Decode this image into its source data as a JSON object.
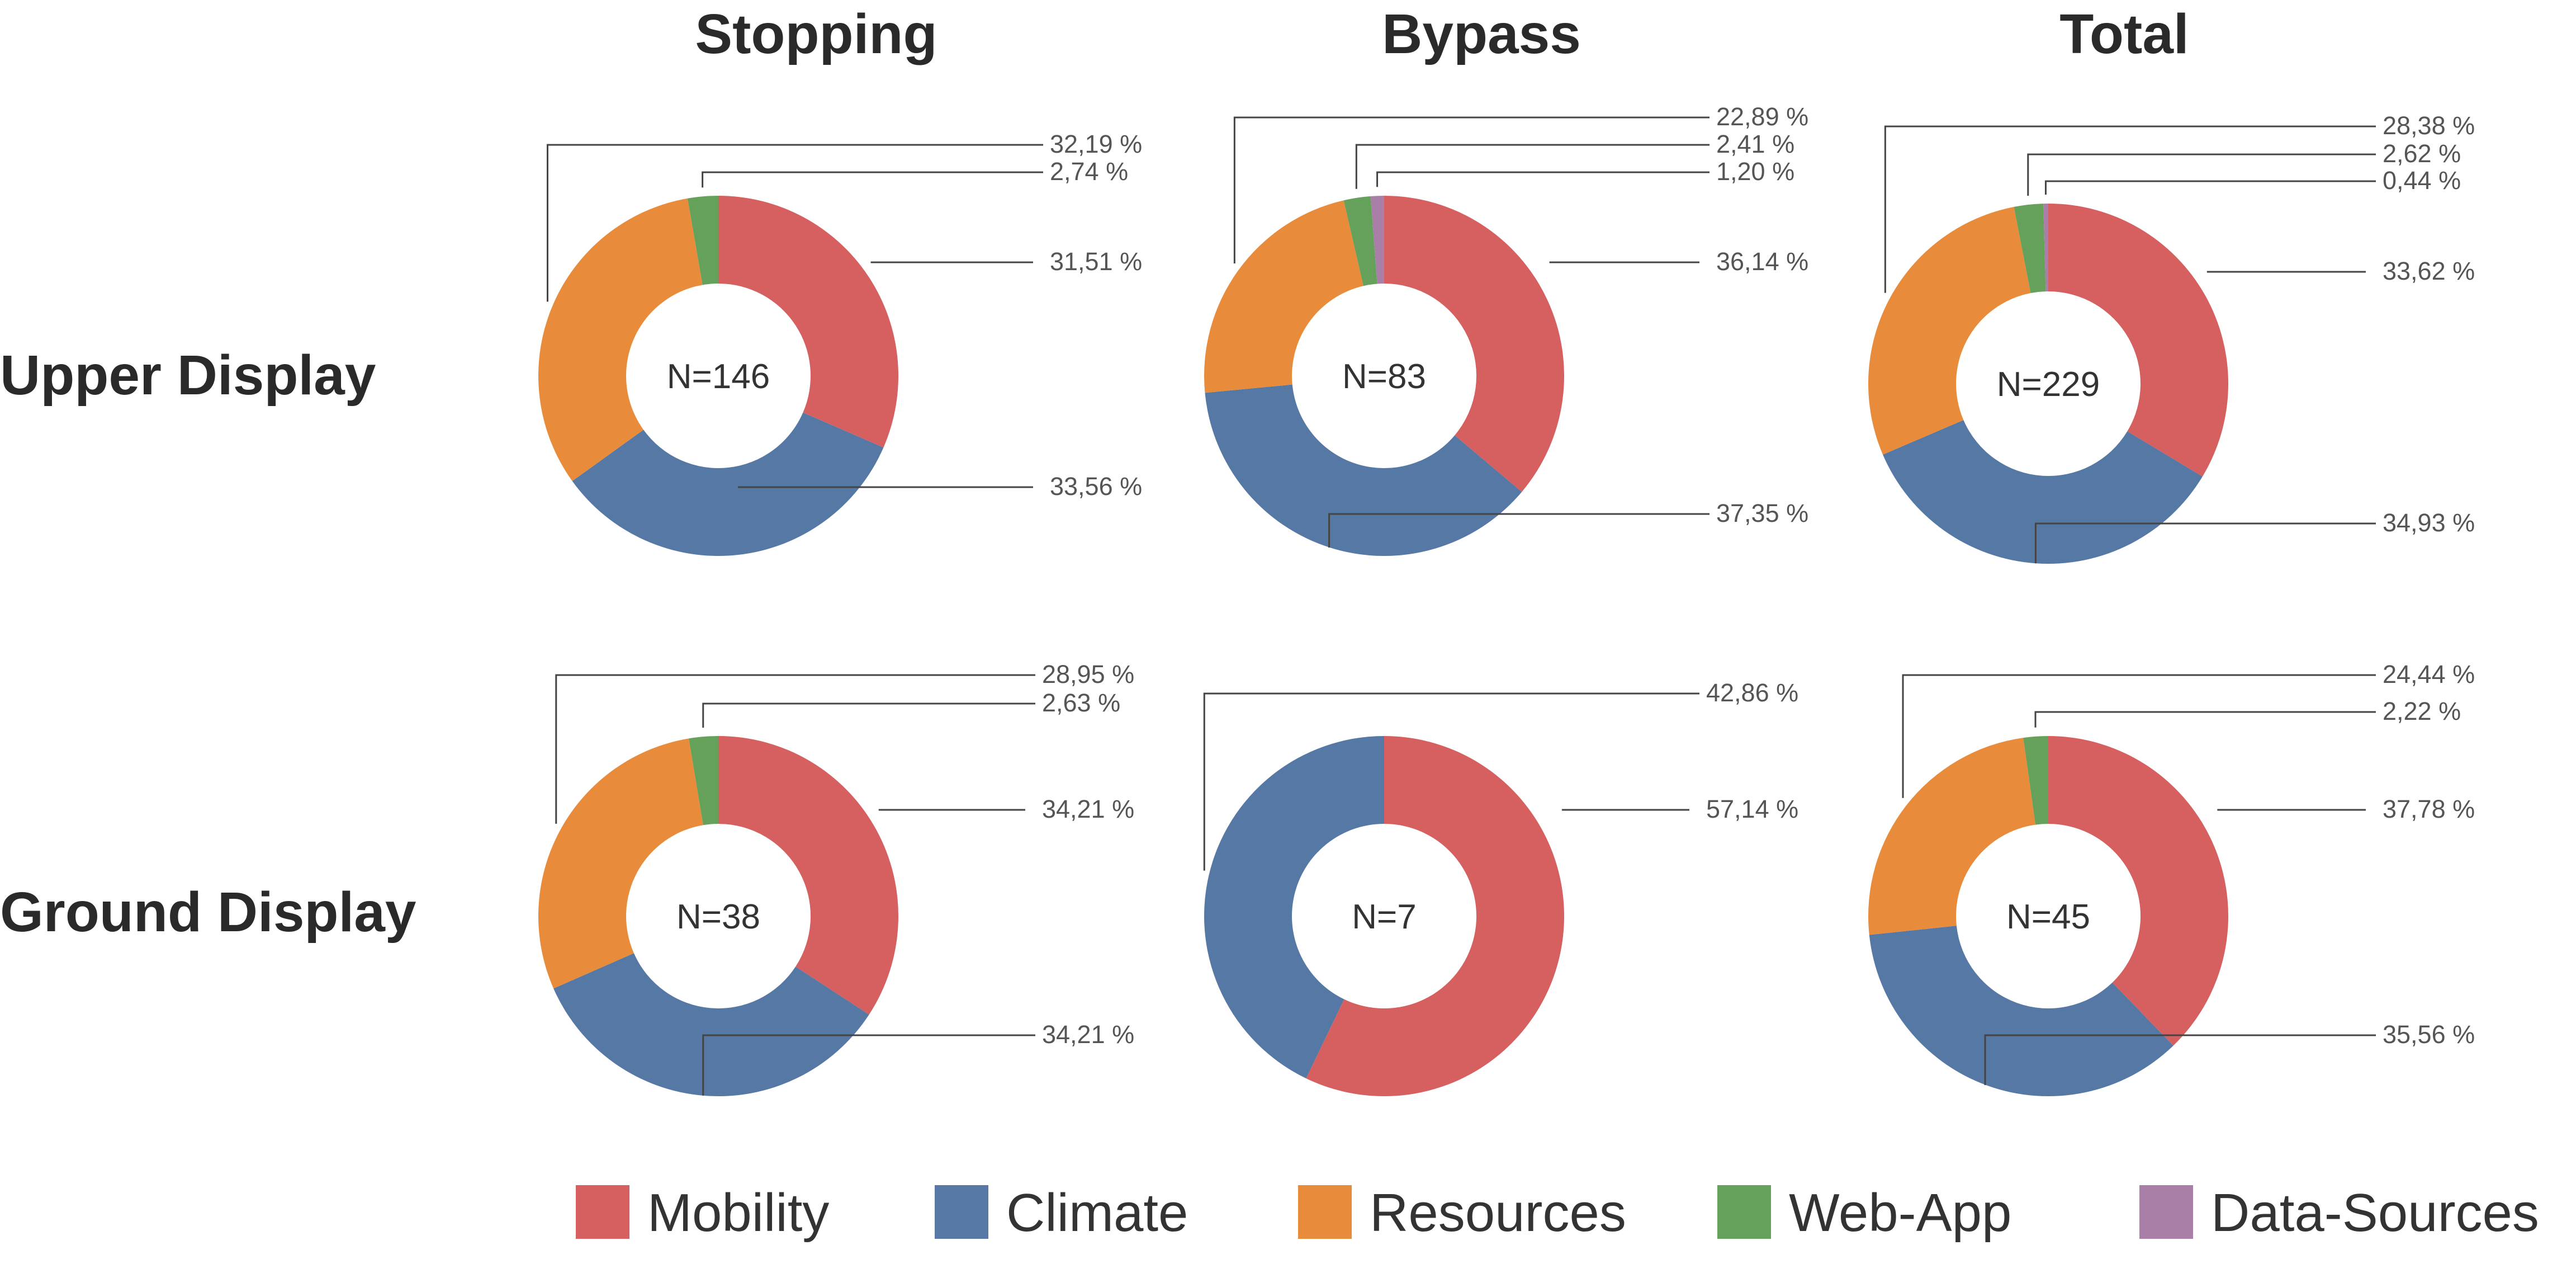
{
  "chart_data": {
    "type": "pie",
    "subtype": "donut-grid",
    "column_titles": [
      "Stopping",
      "Bypass",
      "Total"
    ],
    "row_titles": [
      "Upper Display",
      "Ground Display"
    ],
    "categories": [
      "Mobility",
      "Climate",
      "Resources",
      "Web-App",
      "Data-Sources"
    ],
    "colors": {
      "Mobility": "#D65F5F",
      "Climate": "#5578A4",
      "Resources": "#E88C3C",
      "Web-App": "#65A15A",
      "Data-Sources": "#A97FA7"
    },
    "legend_position": "bottom",
    "charts": [
      {
        "row": "Upper Display",
        "column": "Stopping",
        "center_label": "N=146",
        "values": [
          31.51,
          33.56,
          32.19,
          2.74,
          0
        ],
        "value_labels": [
          "31,51 %",
          "33,56 %",
          "32,19 %",
          "2,74 %",
          ""
        ]
      },
      {
        "row": "Upper Display",
        "column": "Bypass",
        "center_label": "N=83",
        "values": [
          36.14,
          37.35,
          22.89,
          2.41,
          1.2
        ],
        "value_labels": [
          "36,14 %",
          "37,35 %",
          "22,89 %",
          "2,41 %",
          "1,20 %"
        ]
      },
      {
        "row": "Upper Display",
        "column": "Total",
        "center_label": "N=229",
        "values": [
          33.62,
          34.93,
          28.38,
          2.62,
          0.44
        ],
        "value_labels": [
          "33,62 %",
          "34,93 %",
          "28,38 %",
          "2,62 %",
          "0,44 %"
        ]
      },
      {
        "row": "Ground Display",
        "column": "Stopping",
        "center_label": "N=38",
        "values": [
          34.21,
          34.21,
          28.95,
          2.63,
          0
        ],
        "value_labels": [
          "34,21 %",
          "34,21 %",
          "28,95 %",
          "2,63 %",
          ""
        ]
      },
      {
        "row": "Ground Display",
        "column": "Bypass",
        "center_label": "N=7",
        "values": [
          57.14,
          42.86,
          0,
          0,
          0
        ],
        "value_labels": [
          "57,14 %",
          "42,86 %",
          "",
          "",
          ""
        ]
      },
      {
        "row": "Ground Display",
        "column": "Total",
        "center_label": "N=45",
        "values": [
          37.78,
          35.56,
          24.44,
          2.22,
          0
        ],
        "value_labels": [
          "37,78 %",
          "35,56 %",
          "24,44 %",
          "2,22 %",
          ""
        ]
      }
    ]
  }
}
